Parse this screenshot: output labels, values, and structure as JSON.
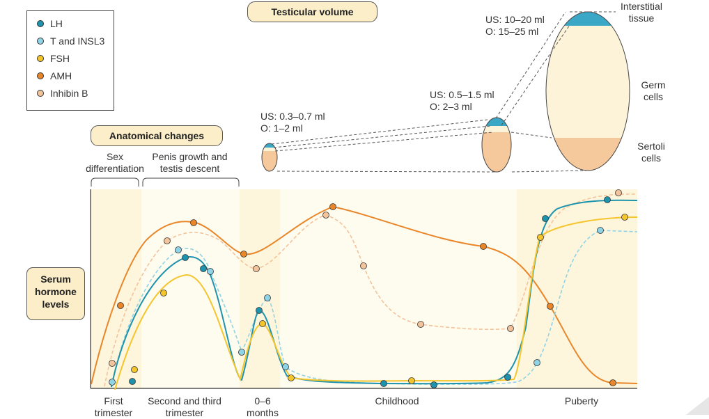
{
  "legend": {
    "items": [
      {
        "label": "LH",
        "color": "#1e93ad"
      },
      {
        "label": "T and INSL3",
        "color": "#8fd3e6"
      },
      {
        "label": "FSH",
        "color": "#f4c52c"
      },
      {
        "label": "AMH",
        "color": "#e9862a"
      },
      {
        "label": "Inhibin B",
        "color": "#f3c39b"
      }
    ]
  },
  "testicular_volume": {
    "title": "Testicular volume",
    "fetal": {
      "us": "US: 0.3–0.7 ml",
      "o": "O: 1–2 ml"
    },
    "childhood": {
      "us": "US: 0.5–1.5 ml",
      "o": "O: 2–3 ml"
    },
    "adult": {
      "us": "US: 10–20 ml",
      "o": "O: 15–25 ml"
    },
    "tissue_labels": {
      "interstitial": [
        "Interstitial",
        "tissue"
      ],
      "germ": [
        "Germ",
        "cells"
      ],
      "sertoli": [
        "Sertoli",
        "cells"
      ]
    }
  },
  "anatomical": {
    "title": "Anatomical changes",
    "sex_diff": [
      "Sex",
      "differentiation"
    ],
    "penis": [
      "Penis growth and",
      "testis descent"
    ]
  },
  "serum": {
    "label": [
      "Serum",
      "hormone",
      "levels"
    ]
  },
  "periods": [
    {
      "label": [
        "First",
        "trimester"
      ]
    },
    {
      "label": [
        "Second and third",
        "trimester"
      ]
    },
    {
      "label": [
        "0–6",
        "months"
      ]
    },
    {
      "label": [
        "Childhood"
      ]
    },
    {
      "label": [
        "Puberty"
      ]
    }
  ],
  "colors": {
    "band": "#fdf6dc",
    "band_light": "#fefbef",
    "germ_fill": "#fdf3d8",
    "sertoli_fill": "#f6c99c",
    "interstitial_fill": "#3ba7c7"
  }
}
